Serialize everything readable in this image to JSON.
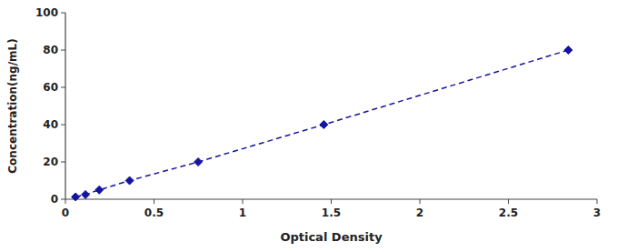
{
  "chart_data": {
    "type": "line",
    "xlabel": "Optical Density",
    "ylabel": "Concentration(ng/mL)",
    "x": [
      0.057,
      0.113,
      0.191,
      0.362,
      0.749,
      1.458,
      2.838
    ],
    "values": [
      1.25,
      2.5,
      5.0,
      10.0,
      20.0,
      40.0,
      80.0
    ],
    "color": "#1414a0",
    "marker": "diamond",
    "line_style": "dashed",
    "xlim": [
      0,
      3.0
    ],
    "ylim": [
      0,
      100
    ],
    "xticks": [
      0,
      0.5,
      1,
      1.5,
      2,
      2.5,
      3
    ],
    "yticks": [
      0,
      20,
      40,
      60,
      80,
      100
    ],
    "grid": false
  }
}
